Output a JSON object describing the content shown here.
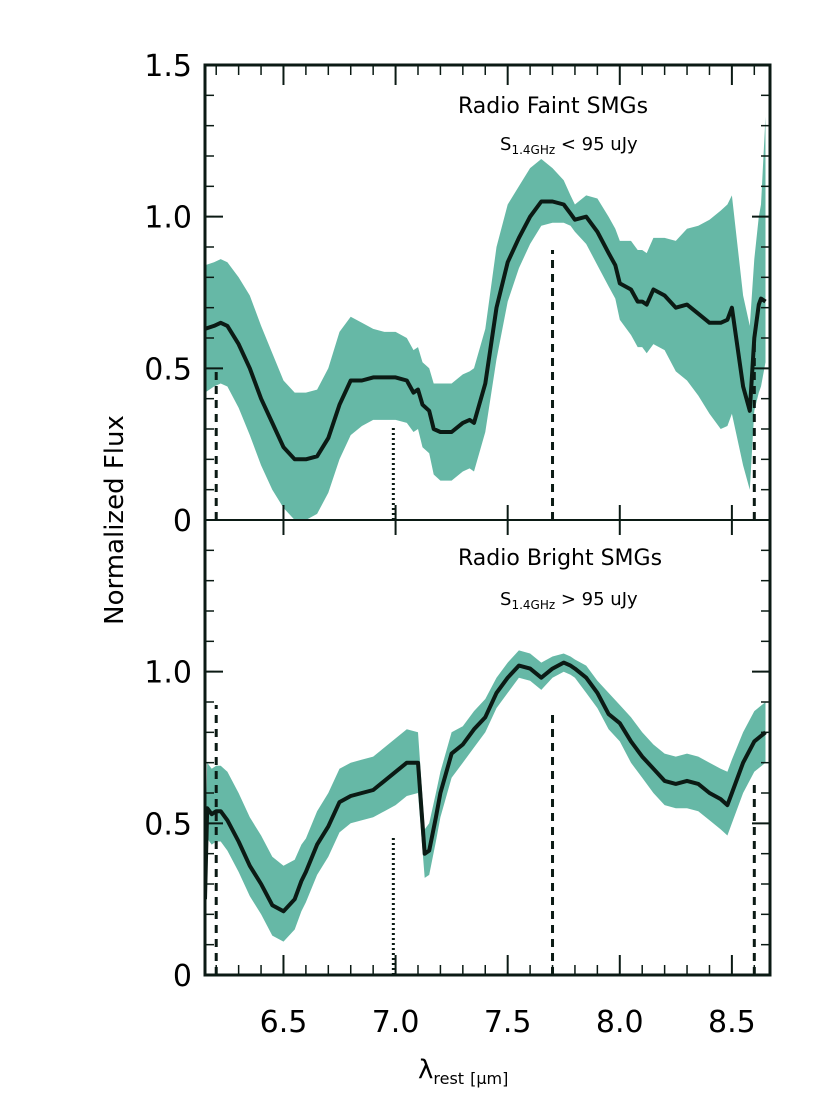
{
  "chart_data": [
    {
      "type": "area",
      "panel": "top",
      "title": "",
      "annotation": "Radio Faint SMGs",
      "annotation_sub": {
        "prefix": "S",
        "subscript": "1.4GHz",
        "suffix": " < 95 uJy"
      },
      "xlabel": "",
      "ylabel": "",
      "xlim": [
        6.15,
        8.67
      ],
      "ylim": [
        0,
        1.5
      ],
      "yticks": [
        {
          "v": 0,
          "label": "0"
        },
        {
          "v": 0.5,
          "label": "0.5"
        },
        {
          "v": 1.0,
          "label": "1.0"
        },
        {
          "v": 1.5,
          "label": "1.5"
        }
      ],
      "series": [
        {
          "kind": "line",
          "x": [
            6.15,
            6.19,
            6.22,
            6.25,
            6.3,
            6.35,
            6.4,
            6.45,
            6.5,
            6.55,
            6.6,
            6.65,
            6.7,
            6.75,
            6.8,
            6.85,
            6.9,
            6.95,
            7.0,
            7.05,
            7.08,
            7.1,
            7.12,
            7.15,
            7.17,
            7.2,
            7.25,
            7.3,
            7.33,
            7.35,
            7.4,
            7.45,
            7.5,
            7.55,
            7.6,
            7.65,
            7.7,
            7.75,
            7.78,
            7.8,
            7.85,
            7.9,
            7.95,
            7.98,
            8.0,
            8.05,
            8.08,
            8.1,
            8.12,
            8.15,
            8.2,
            8.25,
            8.3,
            8.35,
            8.4,
            8.45,
            8.48,
            8.5,
            8.55,
            8.58,
            8.6,
            8.62,
            8.63,
            8.65
          ],
          "y": [
            0.63,
            0.64,
            0.65,
            0.64,
            0.58,
            0.5,
            0.4,
            0.32,
            0.24,
            0.2,
            0.2,
            0.21,
            0.27,
            0.38,
            0.46,
            0.46,
            0.47,
            0.47,
            0.47,
            0.46,
            0.42,
            0.43,
            0.38,
            0.36,
            0.3,
            0.29,
            0.29,
            0.32,
            0.33,
            0.32,
            0.45,
            0.7,
            0.85,
            0.93,
            1.0,
            1.05,
            1.05,
            1.04,
            1.01,
            0.99,
            1.0,
            0.95,
            0.88,
            0.84,
            0.78,
            0.76,
            0.72,
            0.72,
            0.71,
            0.76,
            0.74,
            0.7,
            0.71,
            0.68,
            0.65,
            0.65,
            0.66,
            0.7,
            0.44,
            0.36,
            0.6,
            0.71,
            0.73,
            0.72
          ]
        },
        {
          "kind": "band",
          "x": [
            6.15,
            6.19,
            6.22,
            6.25,
            6.3,
            6.35,
            6.4,
            6.45,
            6.5,
            6.55,
            6.6,
            6.65,
            6.7,
            6.75,
            6.8,
            6.85,
            6.9,
            6.95,
            7.0,
            7.05,
            7.08,
            7.1,
            7.12,
            7.15,
            7.17,
            7.2,
            7.25,
            7.3,
            7.33,
            7.35,
            7.4,
            7.45,
            7.5,
            7.55,
            7.6,
            7.65,
            7.7,
            7.75,
            7.78,
            7.8,
            7.85,
            7.9,
            7.95,
            7.98,
            8.0,
            8.05,
            8.08,
            8.1,
            8.12,
            8.15,
            8.2,
            8.25,
            8.3,
            8.35,
            8.4,
            8.45,
            8.48,
            8.5,
            8.55,
            8.58,
            8.6,
            8.62,
            8.63,
            8.65
          ],
          "low": [
            0.42,
            0.44,
            0.45,
            0.44,
            0.37,
            0.28,
            0.18,
            0.1,
            0.04,
            0.0,
            0.0,
            0.02,
            0.09,
            0.2,
            0.28,
            0.31,
            0.33,
            0.33,
            0.33,
            0.32,
            0.29,
            0.3,
            0.24,
            0.22,
            0.15,
            0.13,
            0.13,
            0.16,
            0.17,
            0.16,
            0.29,
            0.53,
            0.72,
            0.83,
            0.91,
            0.97,
            0.98,
            0.98,
            0.97,
            0.95,
            0.91,
            0.84,
            0.77,
            0.73,
            0.66,
            0.61,
            0.57,
            0.57,
            0.55,
            0.58,
            0.56,
            0.49,
            0.46,
            0.41,
            0.35,
            0.3,
            0.31,
            0.35,
            0.18,
            0.1,
            0.36,
            0.42,
            0.44,
            0.52
          ],
          "high": [
            0.84,
            0.85,
            0.86,
            0.85,
            0.8,
            0.74,
            0.64,
            0.55,
            0.46,
            0.42,
            0.42,
            0.43,
            0.5,
            0.62,
            0.67,
            0.65,
            0.63,
            0.62,
            0.62,
            0.6,
            0.56,
            0.57,
            0.52,
            0.5,
            0.45,
            0.45,
            0.45,
            0.48,
            0.49,
            0.5,
            0.63,
            0.9,
            1.04,
            1.1,
            1.16,
            1.19,
            1.16,
            1.12,
            1.07,
            1.04,
            1.07,
            1.06,
            1.0,
            0.96,
            0.92,
            0.92,
            0.89,
            0.89,
            0.88,
            0.93,
            0.93,
            0.92,
            0.96,
            0.97,
            0.99,
            1.02,
            1.04,
            1.07,
            0.74,
            0.64,
            0.86,
            1.0,
            1.04,
            1.33
          ]
        }
      ]
    },
    {
      "type": "area",
      "panel": "bottom",
      "title": "",
      "annotation": "Radio Bright SMGs",
      "annotation_sub": {
        "prefix": "S",
        "subscript": "1.4GHz",
        "suffix": " > 95 uJy"
      },
      "xlabel": "",
      "ylabel": "",
      "xlim": [
        6.15,
        8.67
      ],
      "ylim": [
        0,
        1.5
      ],
      "yticks": [
        {
          "v": 0,
          "label": "0"
        },
        {
          "v": 0.5,
          "label": "0.5"
        },
        {
          "v": 1.0,
          "label": "1.0"
        }
      ],
      "series": [
        {
          "kind": "line",
          "x": [
            6.15,
            6.16,
            6.18,
            6.2,
            6.22,
            6.25,
            6.3,
            6.35,
            6.4,
            6.45,
            6.5,
            6.55,
            6.58,
            6.6,
            6.65,
            6.7,
            6.75,
            6.8,
            6.85,
            6.9,
            6.95,
            7.0,
            7.05,
            7.1,
            7.13,
            7.15,
            7.18,
            7.2,
            7.25,
            7.3,
            7.35,
            7.4,
            7.45,
            7.5,
            7.55,
            7.6,
            7.65,
            7.7,
            7.75,
            7.78,
            7.8,
            7.85,
            7.9,
            7.95,
            8.0,
            8.05,
            8.1,
            8.15,
            8.2,
            8.25,
            8.3,
            8.35,
            8.4,
            8.45,
            8.48,
            8.5,
            8.55,
            8.6,
            8.65
          ],
          "y": [
            0.25,
            0.55,
            0.53,
            0.54,
            0.54,
            0.51,
            0.44,
            0.36,
            0.3,
            0.23,
            0.21,
            0.25,
            0.31,
            0.34,
            0.43,
            0.49,
            0.57,
            0.59,
            0.6,
            0.61,
            0.64,
            0.67,
            0.7,
            0.7,
            0.4,
            0.41,
            0.52,
            0.6,
            0.73,
            0.76,
            0.81,
            0.85,
            0.93,
            0.98,
            1.02,
            1.01,
            0.98,
            1.01,
            1.03,
            1.02,
            1.01,
            0.98,
            0.93,
            0.86,
            0.83,
            0.77,
            0.72,
            0.68,
            0.64,
            0.63,
            0.64,
            0.63,
            0.6,
            0.58,
            0.56,
            0.6,
            0.7,
            0.77,
            0.8
          ]
        },
        {
          "kind": "band",
          "x": [
            6.15,
            6.16,
            6.18,
            6.2,
            6.22,
            6.25,
            6.3,
            6.35,
            6.4,
            6.45,
            6.5,
            6.55,
            6.58,
            6.6,
            6.65,
            6.7,
            6.75,
            6.8,
            6.85,
            6.9,
            6.95,
            7.0,
            7.05,
            7.1,
            7.13,
            7.15,
            7.18,
            7.2,
            7.25,
            7.3,
            7.35,
            7.4,
            7.45,
            7.5,
            7.55,
            7.6,
            7.65,
            7.7,
            7.75,
            7.78,
            7.8,
            7.85,
            7.9,
            7.95,
            8.0,
            8.05,
            8.1,
            8.15,
            8.2,
            8.25,
            8.3,
            8.35,
            8.4,
            8.45,
            8.48,
            8.5,
            8.55,
            8.6,
            8.65
          ],
          "low": [
            0.15,
            0.45,
            0.43,
            0.44,
            0.44,
            0.41,
            0.34,
            0.26,
            0.2,
            0.13,
            0.11,
            0.15,
            0.21,
            0.24,
            0.33,
            0.39,
            0.47,
            0.5,
            0.51,
            0.52,
            0.54,
            0.56,
            0.59,
            0.6,
            0.32,
            0.33,
            0.44,
            0.52,
            0.65,
            0.7,
            0.75,
            0.8,
            0.88,
            0.93,
            0.98,
            0.97,
            0.94,
            0.98,
            1.0,
            0.99,
            0.98,
            0.93,
            0.88,
            0.81,
            0.77,
            0.7,
            0.65,
            0.6,
            0.56,
            0.55,
            0.55,
            0.54,
            0.51,
            0.48,
            0.46,
            0.5,
            0.6,
            0.67,
            0.7
          ],
          "high": [
            0.35,
            0.7,
            0.68,
            0.69,
            0.69,
            0.67,
            0.6,
            0.52,
            0.46,
            0.39,
            0.36,
            0.38,
            0.43,
            0.45,
            0.54,
            0.6,
            0.68,
            0.7,
            0.71,
            0.72,
            0.75,
            0.78,
            0.81,
            0.8,
            0.48,
            0.5,
            0.6,
            0.67,
            0.8,
            0.82,
            0.87,
            0.91,
            0.98,
            1.03,
            1.07,
            1.06,
            1.03,
            1.05,
            1.06,
            1.05,
            1.04,
            1.02,
            0.97,
            0.93,
            0.89,
            0.85,
            0.8,
            0.76,
            0.73,
            0.72,
            0.73,
            0.72,
            0.7,
            0.68,
            0.67,
            0.71,
            0.8,
            0.87,
            0.9
          ]
        }
      ]
    }
  ],
  "shared_axes": {
    "ylabel": "Normalized Flux",
    "xlabel_main": "λ",
    "xlabel_sub": "rest",
    "xlabel_unit": "[μm]",
    "xticks": [
      {
        "v": 6.5,
        "label": "6.5"
      },
      {
        "v": 7.0,
        "label": "7.0"
      },
      {
        "v": 7.5,
        "label": "7.5"
      },
      {
        "v": 8.0,
        "label": "8.0"
      },
      {
        "v": 8.5,
        "label": "8.5"
      }
    ],
    "feature_lines": [
      {
        "x": 6.2,
        "style": "dashed",
        "top_top": 0.49,
        "top_bottom": 0.89
      },
      {
        "x": 6.99,
        "style": "dotted",
        "top_top": 0.31,
        "top_bottom": 0.46
      },
      {
        "x": 7.7,
        "style": "dashed",
        "top_top": 0.89,
        "top_bottom": 0.86
      },
      {
        "x": 8.6,
        "style": "dashed",
        "top_top": 0.59,
        "top_bottom": 0.63
      }
    ]
  },
  "colors": {
    "band": "#66b8a6",
    "line": "#0b1a14",
    "axis": "#0b1a14"
  }
}
